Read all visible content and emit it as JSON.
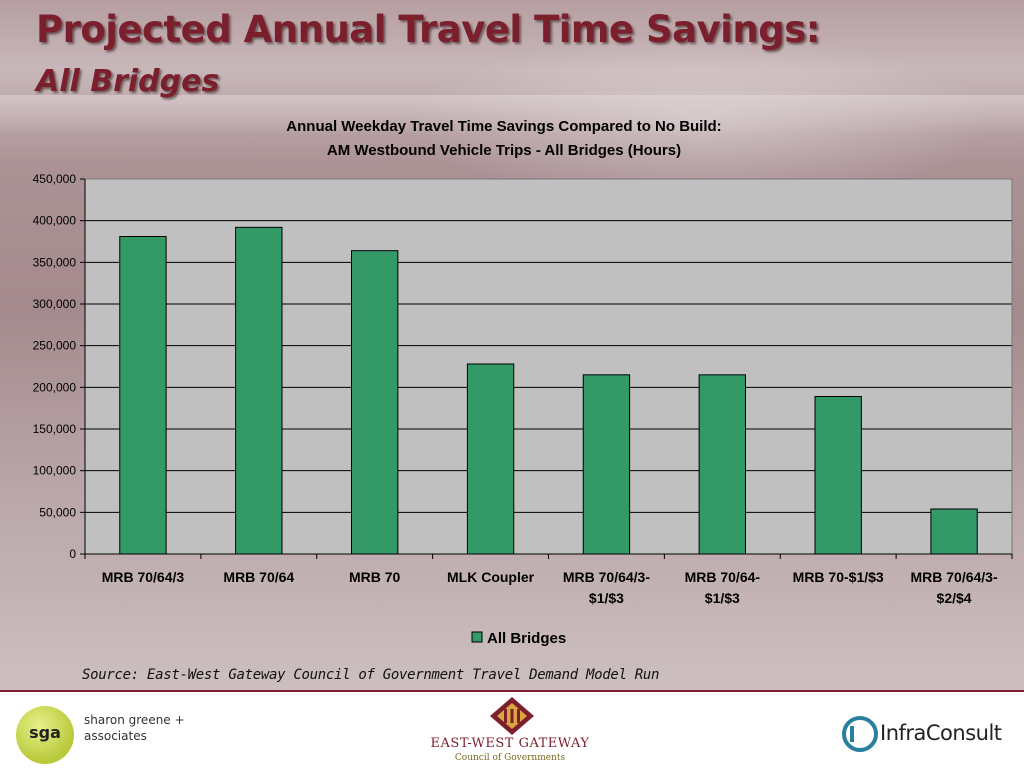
{
  "page": {
    "title": "Projected Annual Travel Time Savings:",
    "subtitle": "All Bridges",
    "source_note": "Source: East-West Gateway Council of Government Travel Demand Model Run"
  },
  "chart_data": {
    "type": "bar",
    "title_line1": "Annual Weekday Travel Time Savings Compared to No Build:",
    "title_line2": "AM Westbound Vehicle Trips - All Bridges (Hours)",
    "categories": [
      [
        "MRB 70/64/3"
      ],
      [
        "MRB 70/64"
      ],
      [
        "MRB 70"
      ],
      [
        "MLK Coupler"
      ],
      [
        "MRB 70/64/3-",
        "$1/$3"
      ],
      [
        "MRB 70/64-",
        "$1/$3"
      ],
      [
        "MRB 70-$1/$3"
      ],
      [
        "MRB 70/64/3-",
        "$2/$4"
      ]
    ],
    "series": [
      {
        "name": "All Bridges",
        "color": "#339966",
        "values": [
          381000,
          392000,
          364000,
          228000,
          215000,
          215000,
          189000,
          54000
        ]
      }
    ],
    "ylim": [
      0,
      450000
    ],
    "ytick_step": 50000,
    "ytick_labels": [
      "0",
      "50,000",
      "100,000",
      "150,000",
      "200,000",
      "250,000",
      "300,000",
      "350,000",
      "400,000",
      "450,000"
    ],
    "grid": true,
    "legend_position": "bottom",
    "plot_background": "#c0c0c0"
  },
  "footer": {
    "sga_logo_text": "sga",
    "sga_name_line1": "sharon greene +",
    "sga_name_line2": "associates",
    "ewg_name": "EAST-WEST GATEWAY",
    "ewg_sub": "Council of Governments",
    "infraconsult_name": "InfraConsult"
  }
}
